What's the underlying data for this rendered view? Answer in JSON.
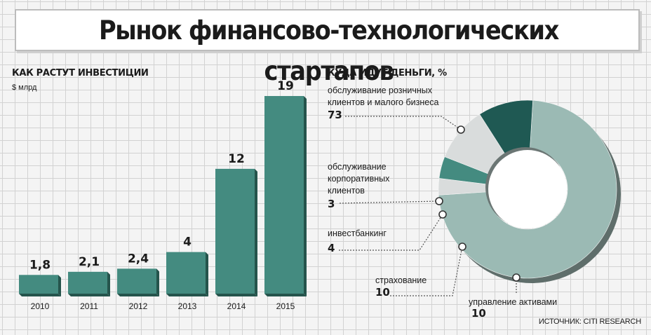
{
  "title": "Рынок финансово-технологических стартапов",
  "left_chart": {
    "title": "КАК РАСТУТ ИНВЕСТИЦИИ",
    "unit": "$ млрд"
  },
  "right_chart": {
    "title": "КУДА ИДУТ ДЕНЬГИ, %",
    "labels": [
      {
        "text": "обслуживание розничных клиентов и малого бизнеса",
        "value": "73"
      },
      {
        "text": "обслуживание корпоративных клиентов",
        "value": "3"
      },
      {
        "text": "инвестбанкинг",
        "value": "4"
      },
      {
        "text": "страхование",
        "value": "10"
      },
      {
        "text": "управление активами",
        "value": "10"
      }
    ]
  },
  "source": "ИСТОЧНИК: CITI RESEARCH",
  "colors": {
    "bar": "#448b80",
    "bar_side": "#25544c",
    "slice_retail": "#9bbab4",
    "slice_corporate": "#d9dcdc",
    "slice_investment": "#448b80",
    "slice_insurance": "#d9dcdc",
    "slice_assets": "#1f5953",
    "leader": "#555555"
  },
  "chart_data": [
    {
      "type": "bar",
      "categories": [
        "2010",
        "2011",
        "2012",
        "2013",
        "2014",
        "2015"
      ],
      "values": [
        1.8,
        2.1,
        2.4,
        4,
        12,
        19
      ],
      "value_labels": [
        "1,8",
        "2,1",
        "2,4",
        "4",
        "12",
        "19"
      ],
      "title": "КАК РАСТУТ ИНВЕСТИЦИИ",
      "ylabel": "$ млрд",
      "ylim": [
        0,
        19
      ]
    },
    {
      "type": "pie",
      "categories": [
        "обслуживание розничных клиентов и малого бизнеса",
        "обслуживание корпоративных клиентов",
        "инвестбанкинг",
        "страхование",
        "управление активами"
      ],
      "values": [
        73,
        3,
        4,
        10,
        10
      ],
      "title": "КУДА ИДУТ ДЕНЬГИ, %"
    }
  ]
}
